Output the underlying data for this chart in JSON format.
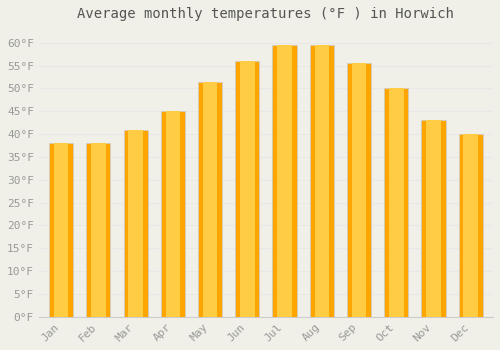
{
  "title": "Average monthly temperatures (°F ) in Horwich",
  "months": [
    "Jan",
    "Feb",
    "Mar",
    "Apr",
    "May",
    "Jun",
    "Jul",
    "Aug",
    "Sep",
    "Oct",
    "Nov",
    "Dec"
  ],
  "values": [
    38,
    38,
    41,
    45,
    51.5,
    56,
    59.5,
    59.5,
    55.5,
    50,
    43,
    40
  ],
  "bar_color_outer": "#FFA500",
  "bar_color_inner": "#FFCC44",
  "bar_edge_color": "#cccccc",
  "ylim": [
    0,
    63
  ],
  "yticks": [
    0,
    5,
    10,
    15,
    20,
    25,
    30,
    35,
    40,
    45,
    50,
    55,
    60
  ],
  "background_color": "#f0f0e8",
  "grid_color": "#e8e8e8",
  "title_fontsize": 10,
  "tick_fontsize": 8,
  "tick_color": "#999999",
  "title_color": "#555555"
}
